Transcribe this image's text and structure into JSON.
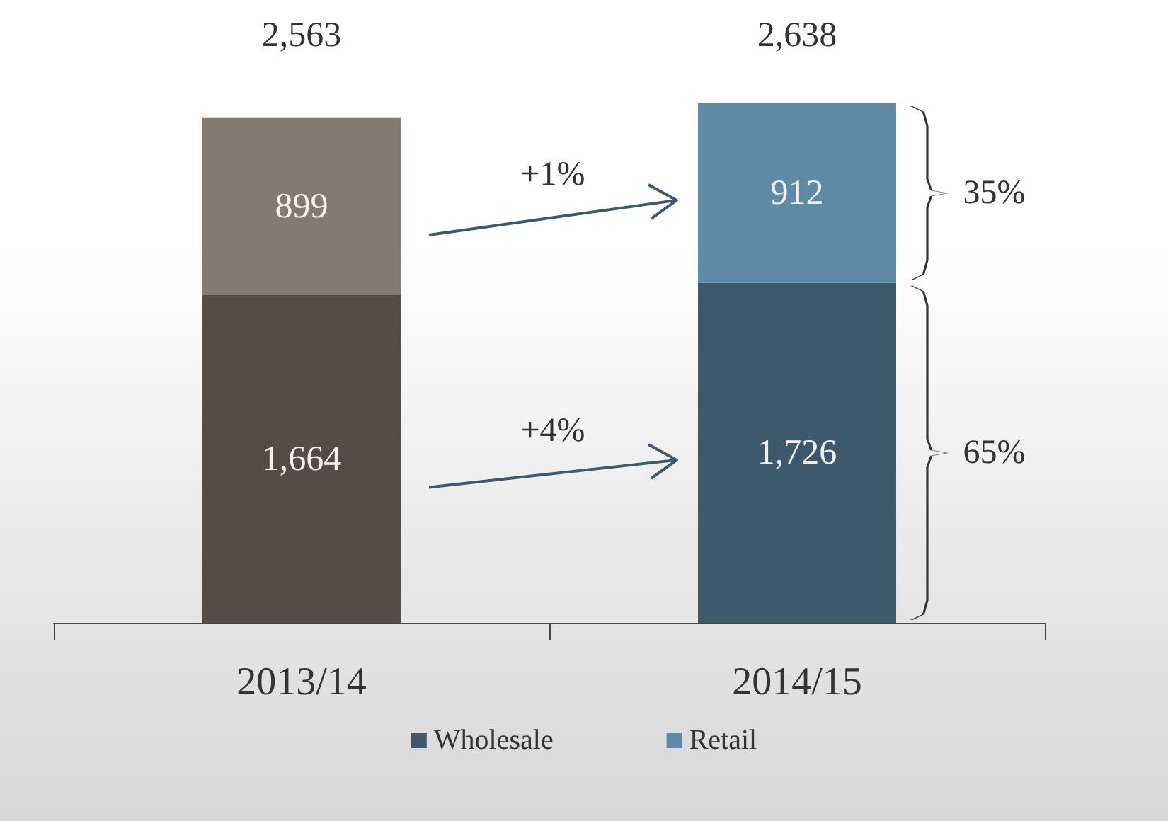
{
  "chart_data": {
    "type": "bar",
    "stacked": true,
    "categories": [
      "2013/14",
      "2014/15"
    ],
    "series": [
      {
        "name": "Wholesale",
        "color": "#3d596b",
        "colors": [
          "#564b47",
          "#3d596b"
        ],
        "values": [
          1664,
          1726
        ],
        "value_labels": [
          "1,664",
          "1,726"
        ]
      },
      {
        "name": "Retail",
        "color": "#5e8aa6",
        "colors": [
          "#857a73",
          "#5e8aa6"
        ],
        "values": [
          899,
          912
        ],
        "value_labels": [
          "899",
          "912"
        ]
      }
    ],
    "totals": [
      "2,563",
      "2,638"
    ],
    "annotations": [
      "+1%",
      "+4%",
      "35%",
      "65%"
    ],
    "legend": "bottom"
  }
}
